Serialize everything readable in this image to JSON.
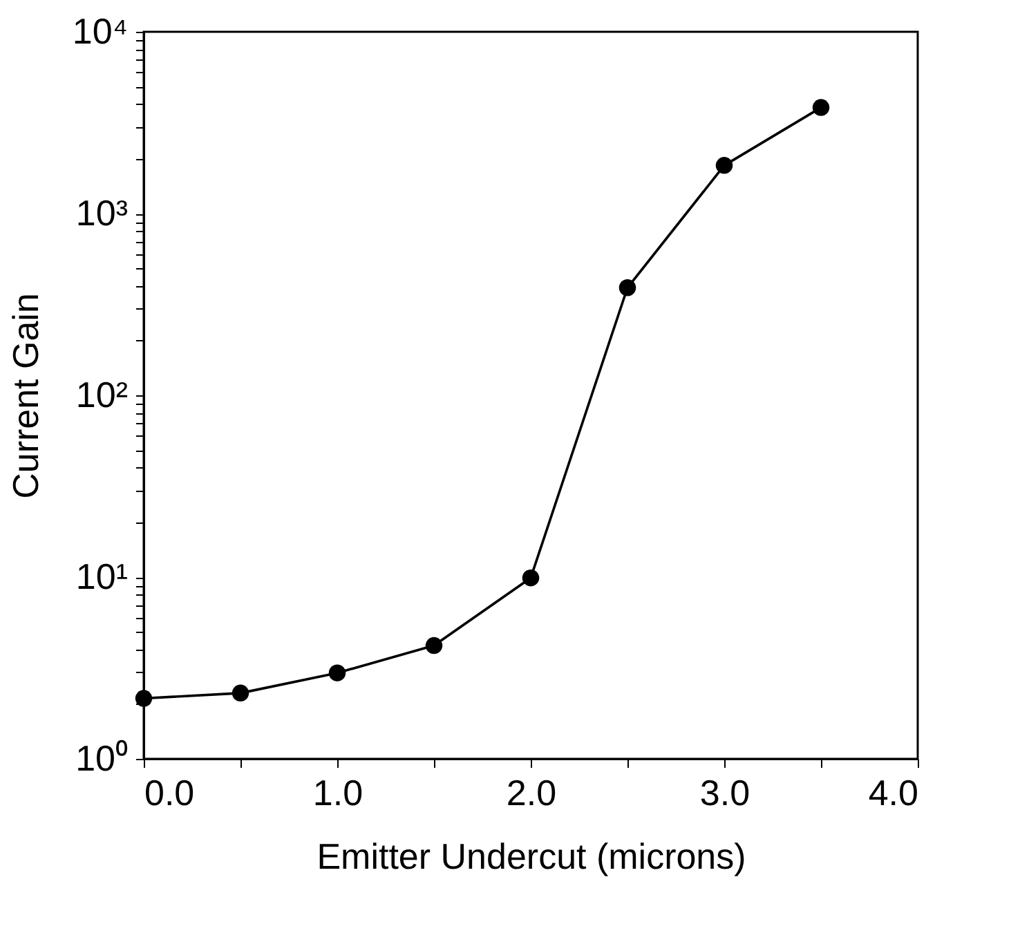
{
  "chart_data": {
    "type": "line",
    "xlabel": "Emitter  Undercut   (microns)",
    "ylabel": "Current  Gain",
    "x": [
      0,
      0.5,
      1.0,
      1.5,
      2.0,
      2.5,
      3.0,
      3.5
    ],
    "series": [
      {
        "color": "#000000",
        "values": [
          2.15,
          2.3,
          2.97,
          4.2,
          9.9,
          391,
          1840,
          3830
        ]
      }
    ],
    "xlim": [
      0,
      4
    ],
    "ylim": [
      1,
      10000
    ],
    "log": "y",
    "marker": "circle",
    "line_style": "solid",
    "grid": false,
    "xticks": [
      {
        "value": 0,
        "label": "0.0"
      },
      {
        "value": 0.5,
        "label": null
      },
      {
        "value": 1,
        "label": "1.0"
      },
      {
        "value": 1.5,
        "label": null
      },
      {
        "value": 2,
        "label": "2.0"
      },
      {
        "value": 2.5,
        "label": null
      },
      {
        "value": 3,
        "label": "3.0"
      },
      {
        "value": 3.5,
        "label": null
      },
      {
        "value": 4,
        "label": "4.0"
      }
    ],
    "yticks": [
      {
        "value": 1,
        "label": "10⁰"
      },
      {
        "value": 2,
        "label": null
      },
      {
        "value": 3,
        "label": null
      },
      {
        "value": 4,
        "label": null
      },
      {
        "value": 5,
        "label": null
      },
      {
        "value": 6,
        "label": null
      },
      {
        "value": 7,
        "label": null
      },
      {
        "value": 8,
        "label": null
      },
      {
        "value": 9,
        "label": null
      },
      {
        "value": 10,
        "label": "10¹"
      },
      {
        "value": 20,
        "label": null
      },
      {
        "value": 30,
        "label": null
      },
      {
        "value": 40,
        "label": null
      },
      {
        "value": 50,
        "label": null
      },
      {
        "value": 60,
        "label": null
      },
      {
        "value": 70,
        "label": null
      },
      {
        "value": 80,
        "label": null
      },
      {
        "value": 90,
        "label": null
      },
      {
        "value": 100,
        "label": "10²"
      },
      {
        "value": 200,
        "label": null
      },
      {
        "value": 300,
        "label": null
      },
      {
        "value": 400,
        "label": null
      },
      {
        "value": 500,
        "label": null
      },
      {
        "value": 600,
        "label": null
      },
      {
        "value": 700,
        "label": null
      },
      {
        "value": 800,
        "label": null
      },
      {
        "value": 900,
        "label": null
      },
      {
        "value": 1000,
        "label": "10³"
      },
      {
        "value": 2000,
        "label": null
      },
      {
        "value": 3000,
        "label": null
      },
      {
        "value": 4000,
        "label": null
      },
      {
        "value": 5000,
        "label": null
      },
      {
        "value": 6000,
        "label": null
      },
      {
        "value": 7000,
        "label": null
      },
      {
        "value": 8000,
        "label": null
      },
      {
        "value": 9000,
        "label": null
      },
      {
        "value": 10000,
        "label": "10⁴"
      }
    ]
  }
}
